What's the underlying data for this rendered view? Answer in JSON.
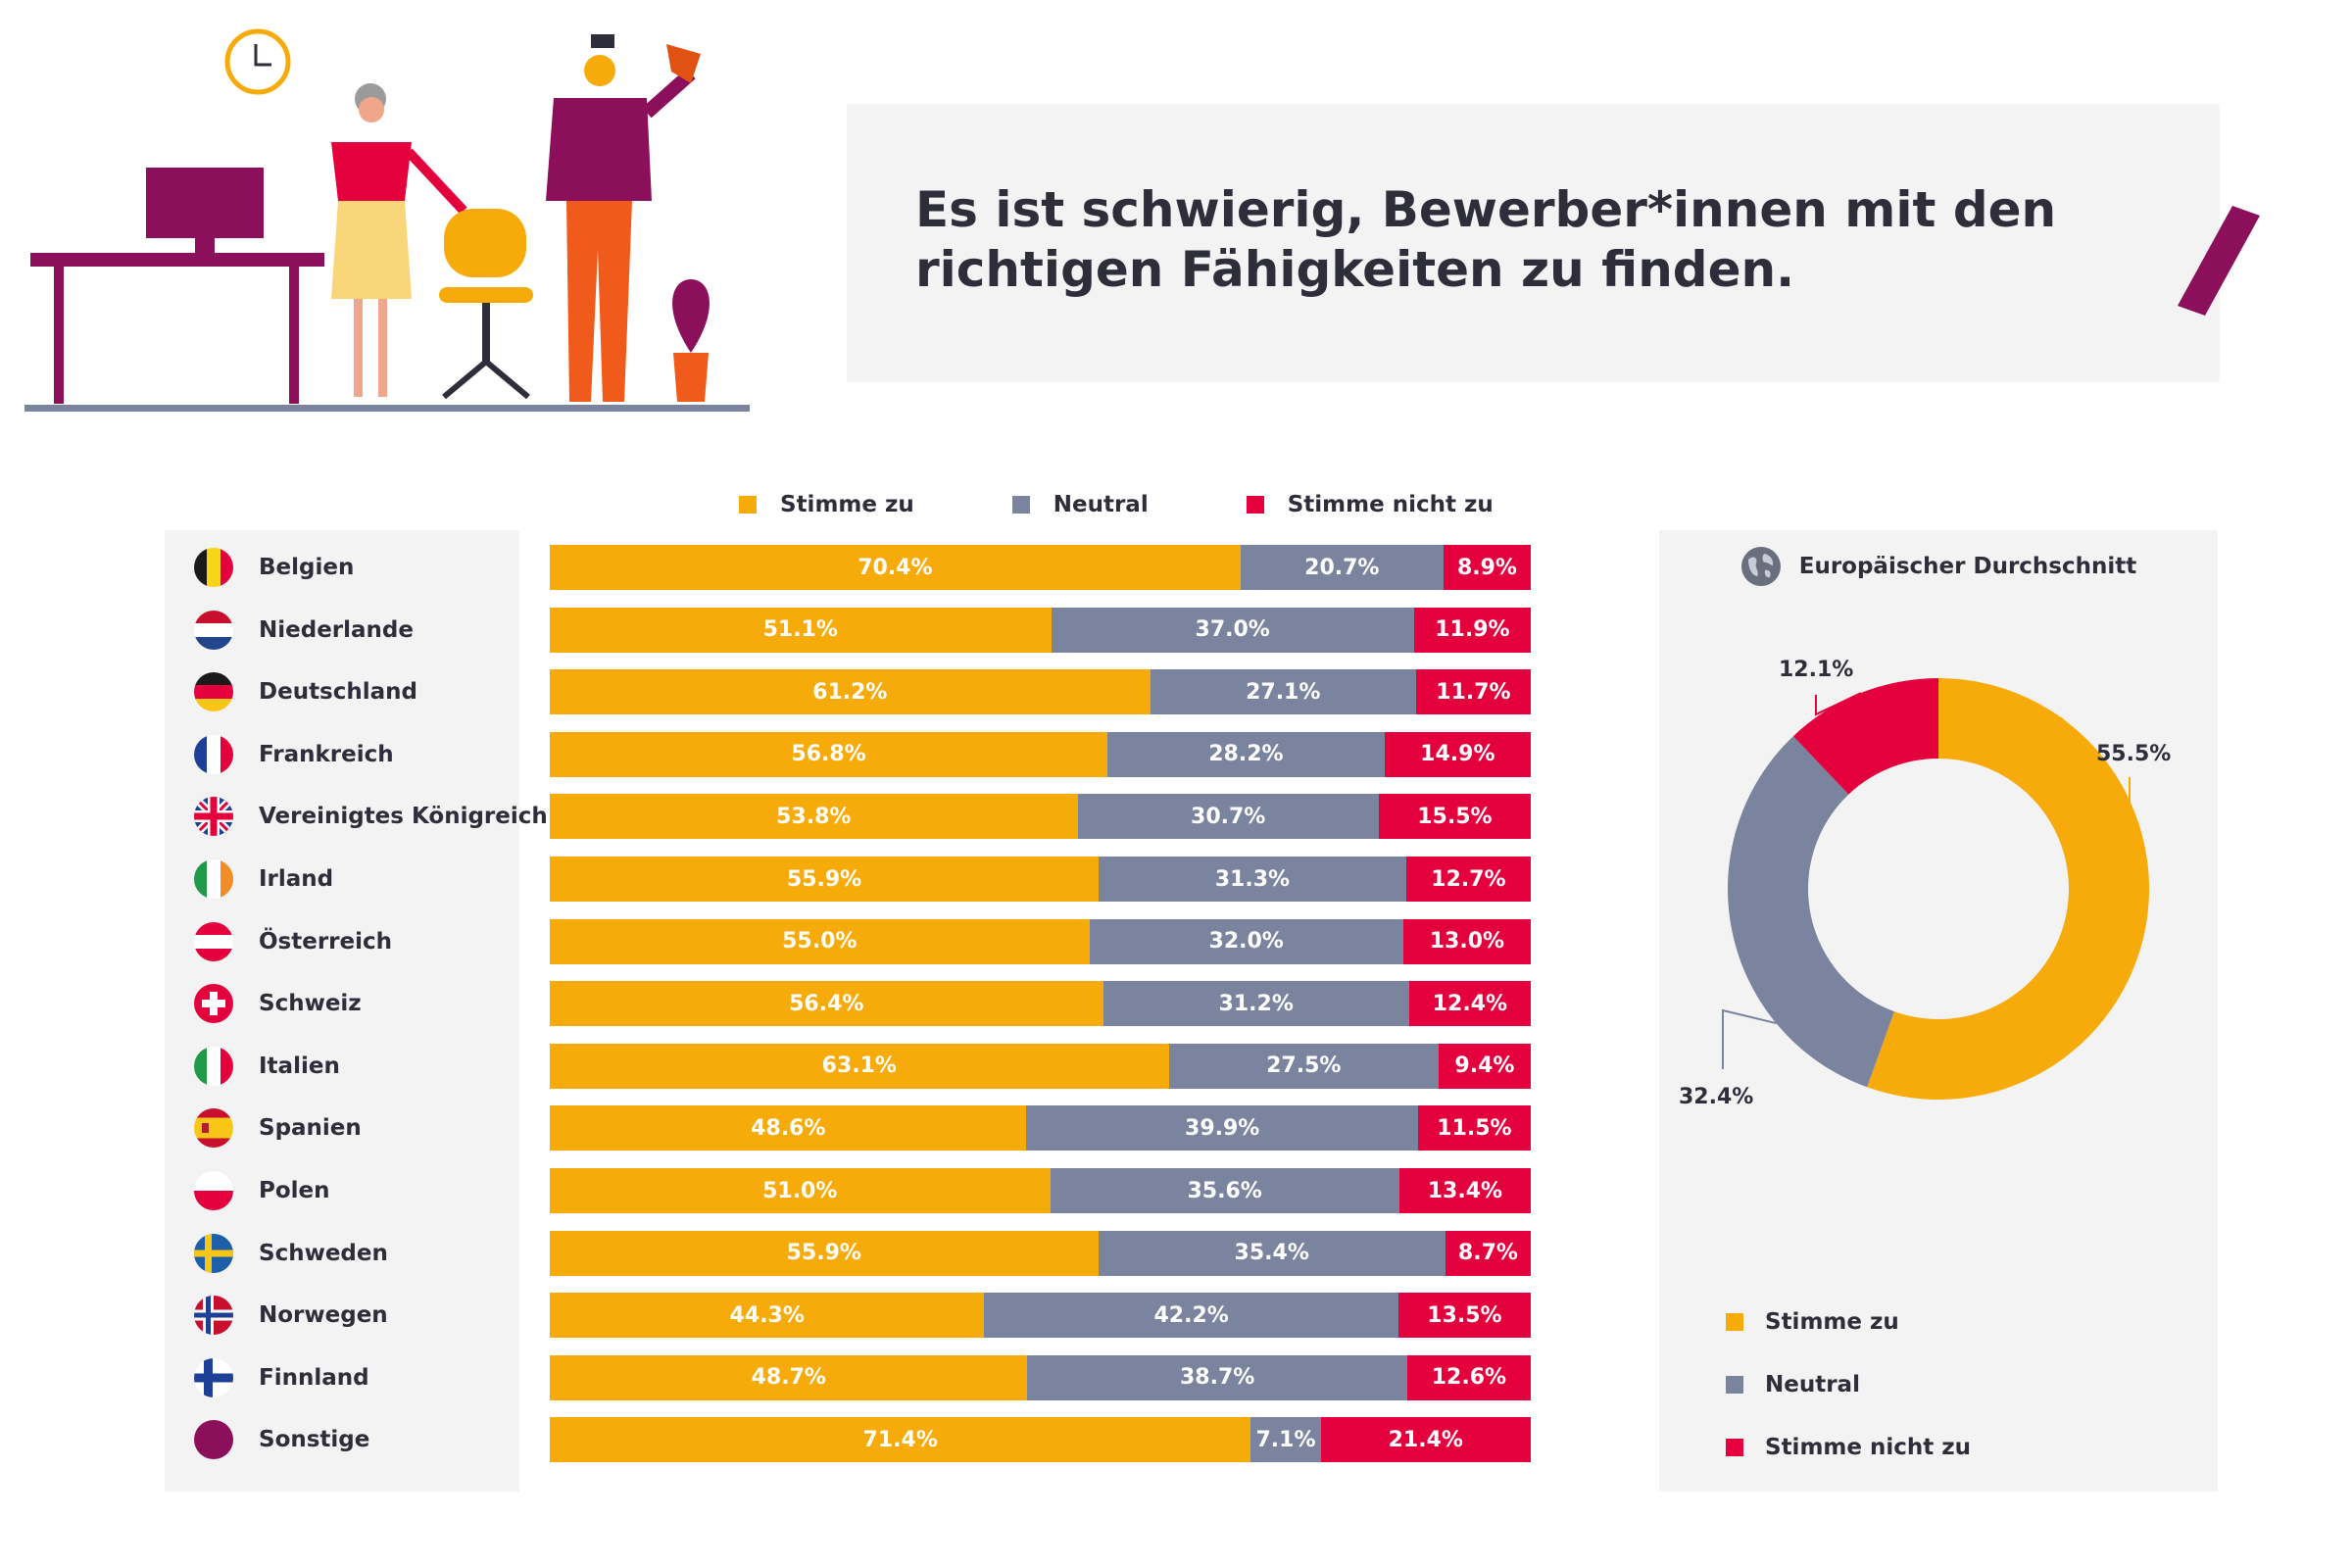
{
  "title": "Es ist schwierig, Bewerber*innen mit den richtigen Fähigkeiten zu finden.",
  "colors": {
    "agree": "#f7ab0a",
    "neutral": "#7a849e",
    "disagree": "#e4003c",
    "panel": "#f3f3f3",
    "accent": "#8b0f5a"
  },
  "legend": {
    "agree": "Stimme zu",
    "neutral": "Neutral",
    "disagree": "Stimme nicht zu"
  },
  "chart_data": [
    {
      "type": "bar",
      "orientation": "horizontal",
      "stacked": true,
      "categories": [
        "Belgien",
        "Niederlande",
        "Deutschland",
        "Frankreich",
        "Vereinigtes Königreich",
        "Irland",
        "Österreich",
        "Schweiz",
        "Italien",
        "Spanien",
        "Polen",
        "Schweden",
        "Norwegen",
        "Finnland",
        "Sonstige"
      ],
      "series": [
        {
          "name": "Stimme zu",
          "values": [
            70.4,
            51.1,
            61.2,
            56.8,
            53.8,
            55.9,
            55.0,
            56.4,
            63.1,
            48.6,
            51.0,
            55.9,
            44.3,
            48.7,
            71.4
          ]
        },
        {
          "name": "Neutral",
          "values": [
            20.7,
            37.0,
            27.1,
            28.2,
            30.7,
            31.3,
            32.0,
            31.2,
            27.5,
            39.9,
            35.6,
            35.4,
            42.2,
            38.7,
            7.1
          ]
        },
        {
          "name": "Stimme nicht zu",
          "values": [
            8.9,
            11.9,
            11.7,
            14.9,
            15.5,
            12.7,
            13.0,
            12.4,
            9.4,
            11.5,
            13.4,
            8.7,
            13.5,
            12.6,
            21.4
          ]
        }
      ],
      "value_format": "{v}%",
      "legend_position": "top"
    },
    {
      "type": "pie",
      "donut": true,
      "title": "Europäischer Durchschnitt",
      "labels": [
        "Stimme zu",
        "Neutral",
        "Stimme nicht zu"
      ],
      "values": [
        55.5,
        32.4,
        12.1
      ],
      "value_labels": [
        "55.5%",
        "32.4%",
        "12.1%"
      ],
      "legend_position": "bottom"
    }
  ]
}
